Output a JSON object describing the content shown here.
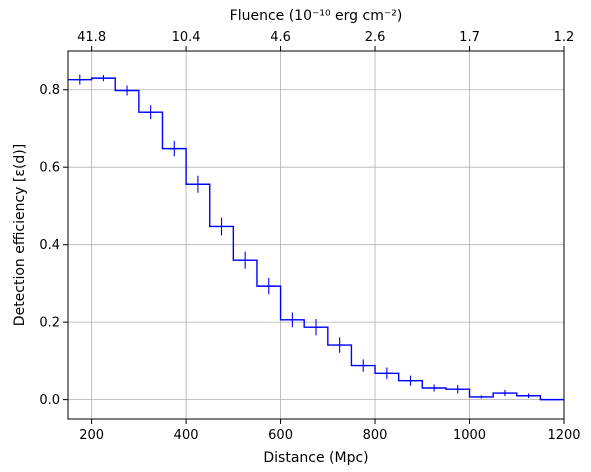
{
  "chart_data": {
    "type": "line",
    "style": "step",
    "xlabel": "Distance (Mpc)",
    "ylabel": "Detection efficiency [ε(d)]",
    "top_xlabel": "Fluence (10⁻¹⁰ erg cm⁻²)",
    "xlim": [
      150,
      1200
    ],
    "ylim": [
      -0.05,
      0.9
    ],
    "grid": true,
    "x_ticks": [
      200,
      400,
      600,
      800,
      1000,
      1200
    ],
    "y_ticks": [
      0.0,
      0.2,
      0.4,
      0.6,
      0.8
    ],
    "y_tick_labels": [
      "0.0",
      "0.2",
      "0.4",
      "0.6",
      "0.8"
    ],
    "top_ticks": [
      {
        "x": 200,
        "label": "41.8"
      },
      {
        "x": 400,
        "label": "10.4"
      },
      {
        "x": 600,
        "label": "4.6"
      },
      {
        "x": 800,
        "label": "2.6"
      },
      {
        "x": 1000,
        "label": "1.7"
      },
      {
        "x": 1200,
        "label": "1.2"
      }
    ],
    "bin_width": 50,
    "series_color": "#0000ff",
    "series": [
      {
        "x": [
          175,
          225,
          275,
          325,
          375,
          425,
          475,
          525,
          575,
          625,
          675,
          725,
          775,
          825,
          875,
          925,
          975,
          1025,
          1075,
          1125,
          1175
        ],
        "y": [
          0.826,
          0.83,
          0.798,
          0.742,
          0.648,
          0.556,
          0.447,
          0.36,
          0.293,
          0.206,
          0.187,
          0.141,
          0.088,
          0.068,
          0.049,
          0.03,
          0.027,
          0.007,
          0.017,
          0.01,
          0.0
        ],
        "yerr": [
          0.013,
          0.008,
          0.013,
          0.018,
          0.02,
          0.022,
          0.023,
          0.022,
          0.021,
          0.019,
          0.021,
          0.02,
          0.016,
          0.015,
          0.013,
          0.009,
          0.011,
          0.004,
          0.008,
          0.006,
          0.0
        ]
      }
    ]
  }
}
